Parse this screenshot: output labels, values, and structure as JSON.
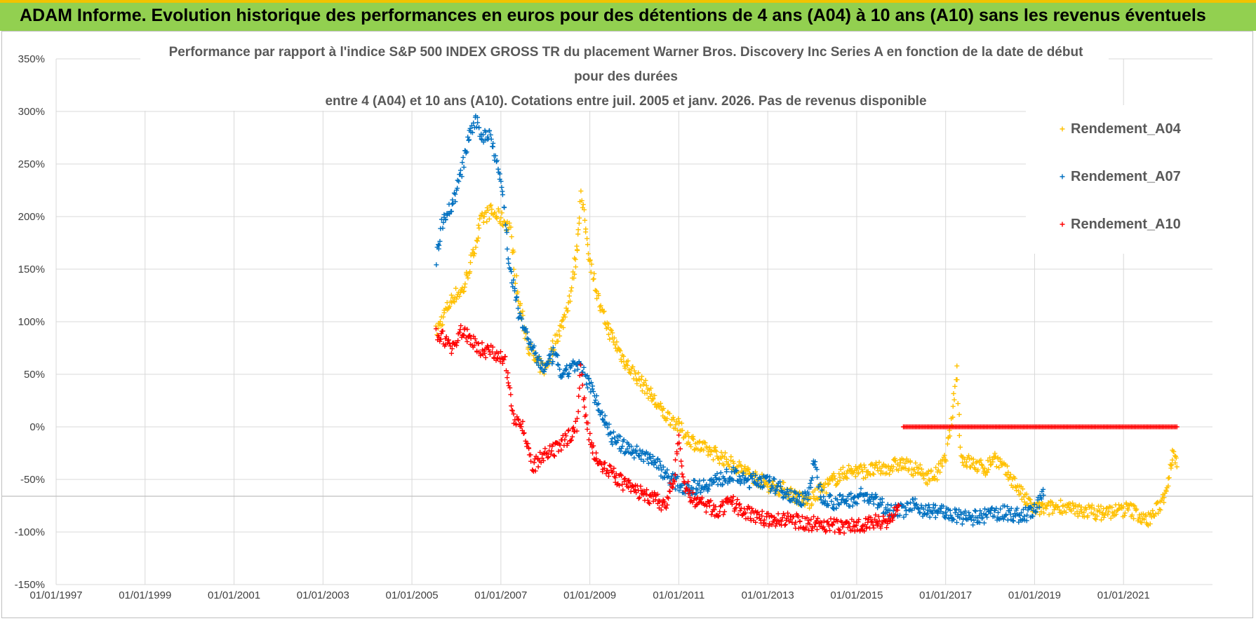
{
  "banner": {
    "title": "ADAM Informe. Evolution historique des performances en euros pour des détentions de 4 ans (A04) à 10 ans (A10) sans les revenus éventuels"
  },
  "colors": {
    "banner_bg": "#92d050",
    "banner_border": "#f2c200",
    "A04": "#ffc000",
    "A07": "#0070c0",
    "A10": "#ff0000",
    "grid": "#d9d9d9"
  },
  "chart_data": {
    "type": "scatter",
    "title_lines": [
      "Performance par rapport à l'indice S&P 500 INDEX GROSS TR  du placement Warner Bros. Discovery Inc Series A en fonction de la date de début",
      "pour des durées",
      "entre 4 (A04) et 10 ans (A10). Cotations entre juil. 2005 et janv. 2026. Pas de revenus disponible"
    ],
    "x_range": [
      1997.0,
      2023.0
    ],
    "ylim": [
      -150,
      350
    ],
    "ytick_values": [
      350,
      300,
      250,
      200,
      150,
      100,
      50,
      0,
      -50,
      -100,
      -150
    ],
    "ytick_labels": [
      "350%",
      "300%",
      "250%",
      "200%",
      "150%",
      "100%",
      "50%",
      "0%",
      "-50%",
      "-100%",
      "-150%"
    ],
    "xtick_values": [
      1997,
      1999,
      2001,
      2003,
      2005,
      2007,
      2009,
      2011,
      2013,
      2015,
      2017,
      2019,
      2021
    ],
    "xtick_labels": [
      "01/01/1997",
      "01/01/1999",
      "01/01/2001",
      "01/01/2003",
      "01/01/2005",
      "01/01/2007",
      "01/01/2009",
      "01/01/2011",
      "01/01/2013",
      "01/01/2015",
      "01/01/2017",
      "01/01/2019",
      "01/01/2021"
    ],
    "marker": "+",
    "legend_position": "top-right",
    "series": [
      {
        "name": "Rendement_A04",
        "color": "#ffc000",
        "x": [
          2005.55,
          2005.75,
          2005.95,
          2006.15,
          2006.35,
          2006.55,
          2006.75,
          2006.95,
          2007.2,
          2007.4,
          2007.6,
          2007.8,
          2008.0,
          2008.2,
          2008.4,
          2008.55,
          2008.65,
          2008.72,
          2008.8,
          2008.9,
          2009.0,
          2009.1,
          2009.25,
          2009.5,
          2009.75,
          2010.0,
          2010.3,
          2010.6,
          2010.9,
          2011.2,
          2011.5,
          2011.8,
          2012.2,
          2012.6,
          2013.0,
          2013.4,
          2013.7,
          2013.95,
          2014.2,
          2014.5,
          2014.8,
          2015.2,
          2015.6,
          2016.0,
          2016.3,
          2016.6,
          2016.8,
          2017.0,
          2017.15,
          2017.25,
          2017.35,
          2017.6,
          2017.9,
          2018.1,
          2018.3,
          2018.5,
          2018.8,
          2019.0,
          2019.3,
          2019.6,
          2019.9,
          2020.2,
          2020.5,
          2020.8,
          2021.1,
          2021.3,
          2021.5,
          2021.7,
          2021.85,
          2021.95,
          2022.05,
          2022.12,
          2022.2
        ],
        "y": [
          90,
          110,
          125,
          130,
          160,
          195,
          205,
          200,
          190,
          120,
          80,
          60,
          55,
          80,
          100,
          125,
          150,
          175,
          220,
          190,
          160,
          140,
          110,
          85,
          65,
          50,
          35,
          15,
          5,
          -10,
          -20,
          -25,
          -35,
          -45,
          -55,
          -60,
          -68,
          -72,
          -60,
          -50,
          -42,
          -42,
          -40,
          -35,
          -40,
          -48,
          -45,
          -30,
          10,
          55,
          -30,
          -35,
          -40,
          -28,
          -40,
          -50,
          -70,
          -78,
          -78,
          -75,
          -80,
          -80,
          -82,
          -80,
          -78,
          -82,
          -90,
          -82,
          -72,
          -60,
          -40,
          -20,
          -38
        ]
      },
      {
        "name": "Rendement_A07",
        "color": "#0070c0",
        "x": [
          2005.55,
          2005.7,
          2005.9,
          2006.1,
          2006.3,
          2006.45,
          2006.6,
          2006.75,
          2006.9,
          2007.05,
          2007.2,
          2007.4,
          2007.6,
          2007.8,
          2008.0,
          2008.2,
          2008.4,
          2008.6,
          2008.8,
          2009.0,
          2009.2,
          2009.5,
          2009.8,
          2010.1,
          2010.4,
          2010.7,
          2011.0,
          2011.3,
          2011.6,
          2011.9,
          2012.2,
          2012.5,
          2012.8,
          2013.1,
          2013.4,
          2013.7,
          2013.9,
          2014.05,
          2014.2,
          2014.5,
          2014.8,
          2015.1,
          2015.4,
          2015.7,
          2016.0,
          2016.3,
          2016.6,
          2016.9,
          2017.2,
          2017.5,
          2017.8,
          2018.1,
          2018.4,
          2018.7,
          2019.0,
          2019.2
        ],
        "y": [
          160,
          200,
          210,
          240,
          280,
          290,
          275,
          280,
          255,
          220,
          150,
          110,
          85,
          65,
          55,
          70,
          45,
          60,
          55,
          40,
          20,
          -10,
          -20,
          -25,
          -30,
          -45,
          -55,
          -58,
          -55,
          -50,
          -45,
          -52,
          -50,
          -55,
          -62,
          -70,
          -65,
          -35,
          -65,
          -72,
          -70,
          -65,
          -70,
          -78,
          -80,
          -75,
          -80,
          -80,
          -85,
          -87,
          -86,
          -82,
          -82,
          -85,
          -80,
          -65
        ]
      },
      {
        "name": "Rendement_A10",
        "color": "#ff0000",
        "x": [
          2005.55,
          2005.7,
          2005.9,
          2006.1,
          2006.3,
          2006.5,
          2006.7,
          2006.9,
          2007.1,
          2007.3,
          2007.5,
          2007.7,
          2007.9,
          2008.1,
          2008.3,
          2008.5,
          2008.7,
          2008.8,
          2008.9,
          2009.05,
          2009.25,
          2009.5,
          2009.8,
          2010.1,
          2010.4,
          2010.7,
          2010.9,
          2011.0,
          2011.1,
          2011.3,
          2011.6,
          2011.9,
          2012.2,
          2012.5,
          2012.8,
          2013.1,
          2013.4,
          2013.7,
          2014.0,
          2014.3,
          2014.6,
          2014.9,
          2015.2,
          2015.5,
          2015.8,
          2015.95
        ],
        "y": [
          90,
          85,
          75,
          90,
          85,
          75,
          72,
          70,
          60,
          10,
          0,
          -40,
          -30,
          -25,
          -20,
          -10,
          0,
          55,
          10,
          -20,
          -35,
          -45,
          -55,
          -62,
          -68,
          -75,
          -50,
          -10,
          -50,
          -68,
          -75,
          -80,
          -72,
          -82,
          -85,
          -90,
          -88,
          -90,
          -92,
          -93,
          -95,
          -94,
          -92,
          -90,
          -88,
          -75
        ]
      }
    ],
    "flat_series": {
      "name": "Rendement_A10",
      "x_start": 2016.05,
      "x_end": 2022.2,
      "y": 0
    }
  }
}
